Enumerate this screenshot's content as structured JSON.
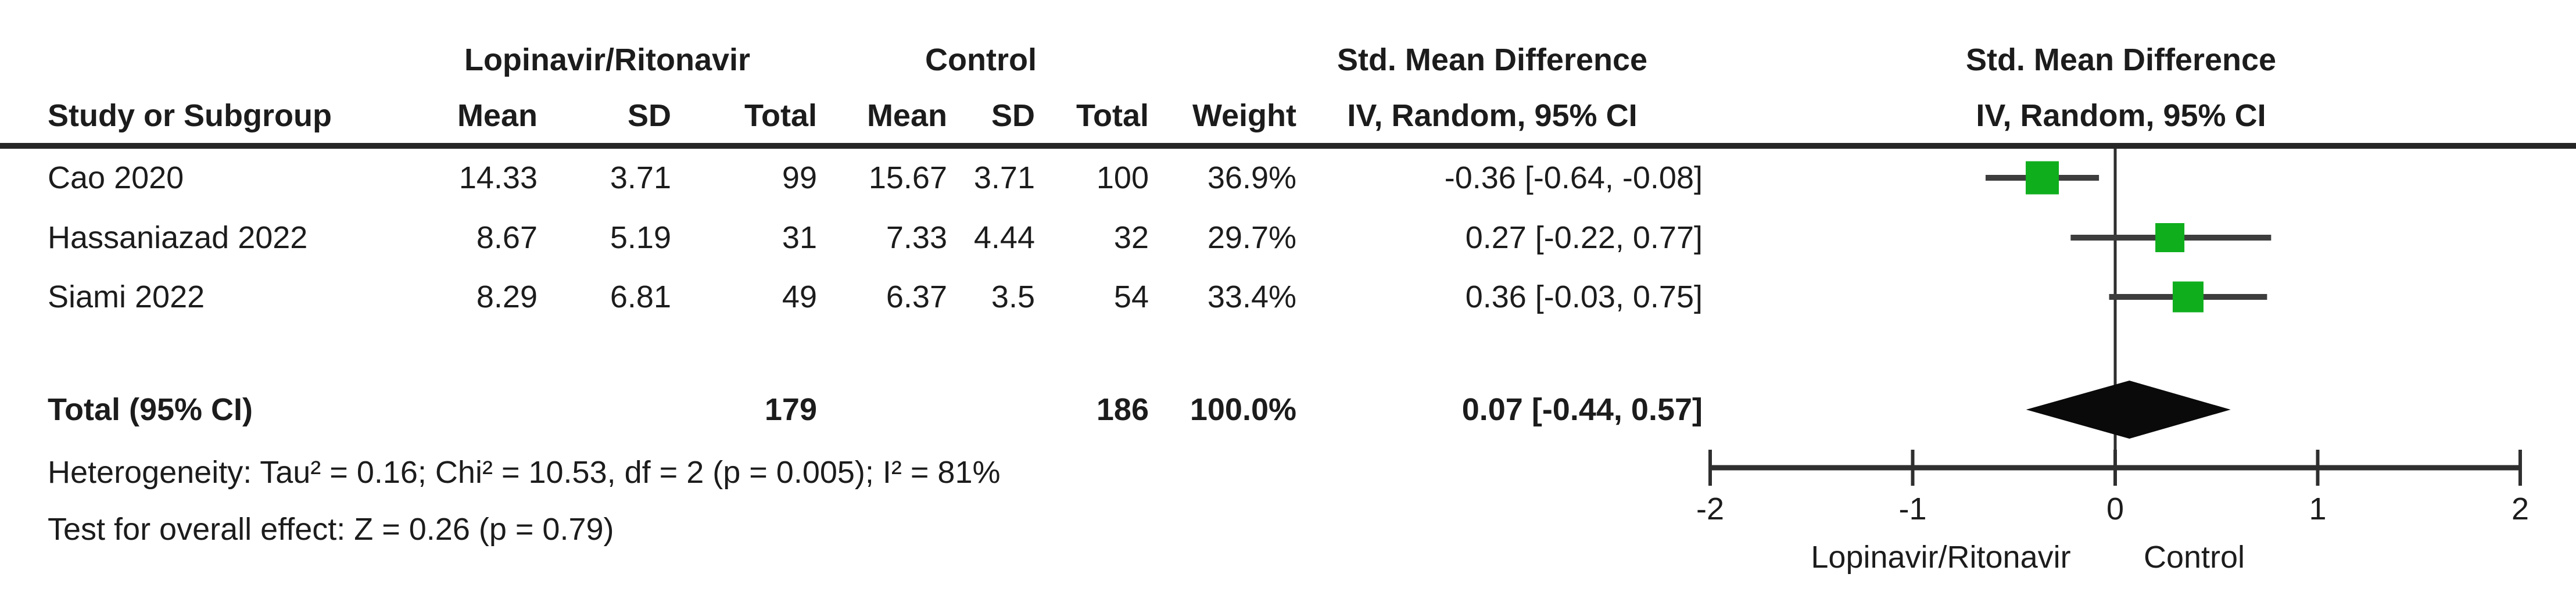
{
  "colors": {
    "text": "#1c1c1c",
    "rule": "#262626",
    "ci_line": "#3d3d3d",
    "axis_line": "#2f2f2f",
    "marker_green": "#0fae1d",
    "diamond_black": "#0a0a0a"
  },
  "table": {
    "group_headers": {
      "experimental": "Lopinavir/Ritonavir",
      "control": "Control",
      "effect_left": "Std. Mean Difference",
      "effect_right": "Std. Mean Difference"
    },
    "column_headers": {
      "study": "Study or Subgroup",
      "mean1": "Mean",
      "sd1": "SD",
      "total1": "Total",
      "mean2": "Mean",
      "sd2": "SD",
      "total2": "Total",
      "weight": "Weight",
      "ci_left": "IV, Random, 95% CI",
      "ci_right": "IV, Random, 95% CI"
    },
    "rows": [
      {
        "study": "Cao 2020",
        "mean1": "14.33",
        "sd1": "3.71",
        "total1": "99",
        "mean2": "15.67",
        "sd2": "3.71",
        "total2": "100",
        "weight": "36.9%",
        "ci": "-0.36 [-0.64, -0.08]"
      },
      {
        "study": "Hassaniazad 2022",
        "mean1": "8.67",
        "sd1": "5.19",
        "total1": "31",
        "mean2": "7.33",
        "sd2": "4.44",
        "total2": "32",
        "weight": "29.7%",
        "ci": "0.27 [-0.22, 0.77]"
      },
      {
        "study": "Siami 2022",
        "mean1": "8.29",
        "sd1": "6.81",
        "total1": "49",
        "mean2": "6.37",
        "sd2": "3.5",
        "total2": "54",
        "weight": "33.4%",
        "ci": "0.36 [-0.03, 0.75]"
      }
    ],
    "total_row": {
      "label": "Total (95% CI)",
      "total1": "179",
      "total2": "186",
      "weight": "100.0%",
      "ci": "0.07 [-0.44, 0.57]"
    },
    "footnotes": {
      "heterogeneity": "Heterogeneity: Tau² = 0.16; Chi² = 10.53, df = 2 (p = 0.005); I² = 81%",
      "overall_effect": "Test for overall effect: Z = 0.26 (p = 0.79)"
    }
  },
  "chart_data": {
    "type": "forest",
    "title": "Std. Mean Difference",
    "model": "IV, Random, 95% CI",
    "xlim": [
      -2,
      2
    ],
    "ticks": [
      -2,
      -1,
      0,
      1,
      2
    ],
    "tick_labels": [
      "-2",
      "-1",
      "0",
      "1",
      "2"
    ],
    "favours_left_label": "Lopinavir/Ritonavir",
    "favours_right_label": "Control",
    "studies": [
      {
        "name": "Cao 2020",
        "smd": -0.36,
        "ci_low": -0.64,
        "ci_high": -0.08,
        "weight_pct": 36.9
      },
      {
        "name": "Hassaniazad 2022",
        "smd": 0.27,
        "ci_low": -0.22,
        "ci_high": 0.77,
        "weight_pct": 29.7
      },
      {
        "name": "Siami 2022",
        "smd": 0.36,
        "ci_low": -0.03,
        "ci_high": 0.75,
        "weight_pct": 33.4
      }
    ],
    "total": {
      "smd": 0.07,
      "ci_low": -0.44,
      "ci_high": 0.57,
      "weight_pct": 100.0
    }
  }
}
